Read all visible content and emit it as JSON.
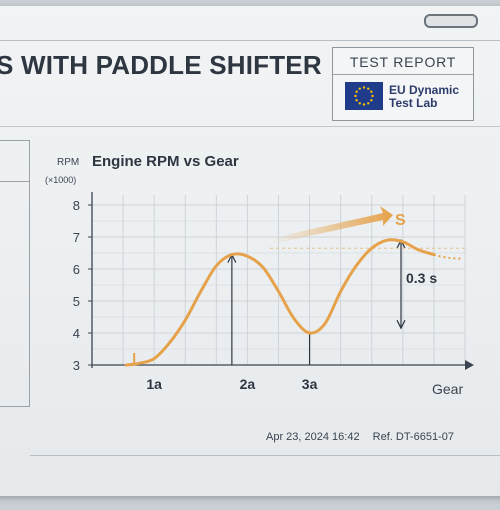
{
  "header": {
    "headline": "S WITH PADDLE SHIFTER",
    "report_title": "TEST REPORT",
    "lab_name_line1": "EU Dynamic",
    "lab_name_line2": "Test Lab"
  },
  "footer": {
    "datetime": "Apr 23, 2024 16:42",
    "reference": "Ref. DT-6651-07"
  },
  "chart_data": {
    "type": "line",
    "title": "Engine RPM vs Gear",
    "ylabel": "RPM",
    "ylabel_unit": "(×1000)",
    "xlabel": "Gear",
    "ylim": [
      3,
      8
    ],
    "yticks": [
      "3",
      "4",
      "5",
      "6",
      "7",
      "8"
    ],
    "xticks": [
      "1a",
      "2a",
      "3a"
    ],
    "grid": true,
    "series": [
      {
        "color": "#e6a24a",
        "points": [
          [
            0.55,
            3.0
          ],
          [
            0.75,
            3.05
          ],
          [
            1.0,
            3.2
          ],
          [
            1.25,
            3.7
          ],
          [
            1.5,
            4.4
          ],
          [
            1.75,
            5.3
          ],
          [
            2.0,
            6.1
          ],
          [
            2.25,
            6.45
          ],
          [
            2.5,
            6.4
          ],
          [
            2.75,
            6.05
          ],
          [
            3.0,
            5.3
          ],
          [
            3.25,
            4.45
          ],
          [
            3.5,
            4.0
          ],
          [
            3.75,
            4.3
          ],
          [
            4.0,
            5.3
          ],
          [
            4.25,
            6.1
          ],
          [
            4.5,
            6.65
          ],
          [
            4.75,
            6.9
          ],
          [
            5.0,
            6.85
          ],
          [
            5.25,
            6.6
          ],
          [
            5.5,
            6.45
          ]
        ]
      }
    ],
    "annotations": {
      "duration_label": "0.3 s",
      "arrow_glyph": "S"
    },
    "colors": {
      "curve": "#e6a24a",
      "axis": "#3a4450",
      "grid": "#cfd4d8",
      "flag_blue": "#1f3b8a",
      "flag_star": "#f2c200"
    }
  }
}
